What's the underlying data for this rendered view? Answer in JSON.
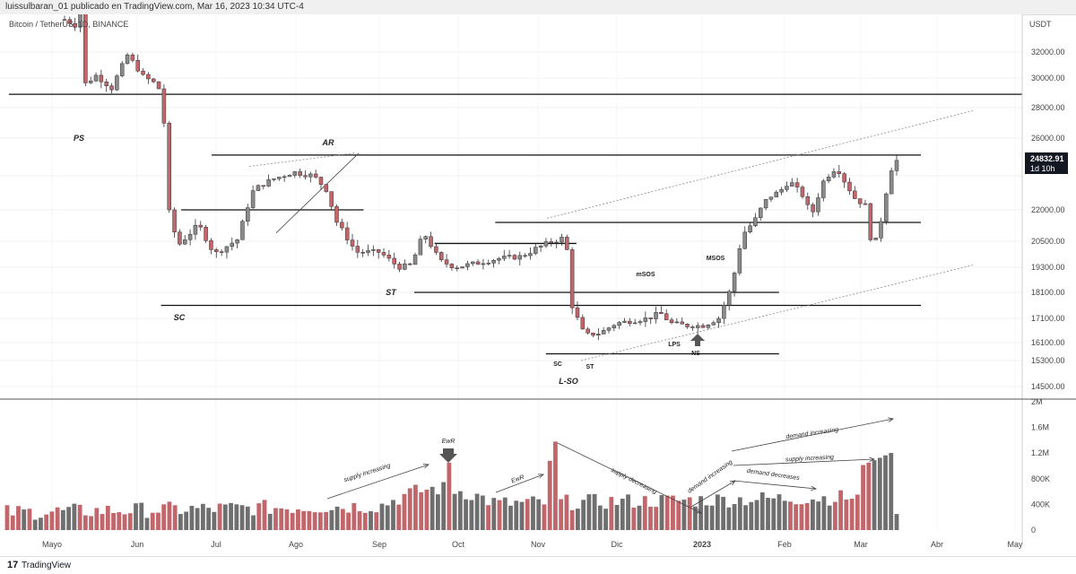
{
  "header": {
    "publisher": "luissulbaran_01 publicado en TradingView.com, Mar 16, 2023 10:34 UTC-4"
  },
  "symbol_label": "Bitcoin / TetherUS, 1D, BINANCE",
  "currency": "USDT",
  "footer": {
    "brand": "TradingView",
    "logo": "17"
  },
  "price_badge": {
    "price": "24832.91",
    "countdown": "1d 10h",
    "color": "#131722"
  },
  "colors": {
    "up": "#8a8a8a",
    "down": "#c1666b",
    "vol_up": "#6f6f6f",
    "vol_down": "#c1666b"
  },
  "chart_data": {
    "type": "candlestick",
    "price_ticks": [
      14500,
      15300,
      16100,
      17100,
      18100,
      19300,
      20500,
      22000,
      24000,
      26000,
      28000,
      30000,
      32000
    ],
    "price_tick_labels": [
      "14500.00",
      "15300.00",
      "16100.00",
      "17100.00",
      "18100.00",
      "19300.00",
      "20500.00",
      "22000.00",
      "",
      "26000.00",
      "28000.00",
      "30000.00",
      "32000.00"
    ],
    "volume_ticks": [
      0,
      400000,
      800000,
      1200000,
      1600000,
      2000000
    ],
    "volume_tick_labels": [
      "0",
      "400K",
      "800K",
      "1.2M",
      "1.6M",
      "2M"
    ],
    "x_labels": [
      "Mayo",
      "Jun",
      "Jul",
      "Ago",
      "Sep",
      "Oct",
      "Nov",
      "Dic",
      "2023",
      "Feb",
      "Mar",
      "Abr",
      "May"
    ],
    "horizontal_levels": [
      {
        "price": 28900,
        "from": 0,
        "to": 1
      },
      {
        "price": 25100,
        "from": 0.2,
        "to": 0.9
      },
      {
        "price": 22000,
        "from": 0.17,
        "to": 0.35
      },
      {
        "price": 21400,
        "from": 0.48,
        "to": 0.9
      },
      {
        "price": 20400,
        "from": 0.42,
        "to": 0.56
      },
      {
        "price": 18100,
        "from": 0.4,
        "to": 0.76
      },
      {
        "price": 17600,
        "from": 0.15,
        "to": 0.9
      },
      {
        "price": 15600,
        "from": 0.53,
        "to": 0.76
      }
    ],
    "price_labels": [
      "PS",
      "SC",
      "AR",
      "ST",
      "SC",
      "ST",
      "L-SO",
      "mSOS",
      "MSOS",
      "LPS",
      "NS"
    ],
    "volume_labels": [
      "EwR",
      "supply increasing",
      "EwR",
      "supply decreasing",
      "demand increasing",
      "demand decreases",
      "supply increasing",
      "demand increasing"
    ]
  }
}
